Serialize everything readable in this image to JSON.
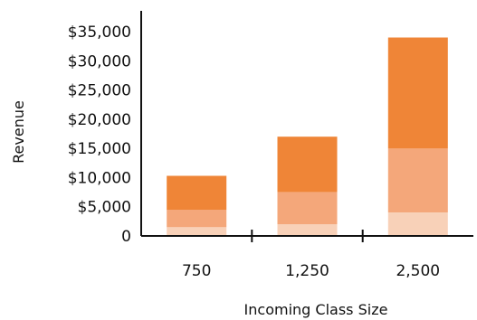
{
  "chart_data": {
    "type": "bar",
    "stacked": true,
    "categories": [
      "750",
      "1,250",
      "2,500"
    ],
    "series": [
      {
        "values": [
          1500,
          2000,
          4000
        ],
        "color": "#F8D1B8"
      },
      {
        "values": [
          3000,
          5500,
          11000
        ],
        "color": "#F4A77A"
      },
      {
        "values": [
          5800,
          9500,
          19000
        ],
        "color": "#EF8537"
      }
    ],
    "xlabel": "Incoming Class Size",
    "ylabel": "Revenue",
    "ylim": [
      0,
      35000
    ],
    "yticks": [
      {
        "value": 0,
        "label": "0"
      },
      {
        "value": 5000,
        "label": "$5,000"
      },
      {
        "value": 10000,
        "label": "$10,000"
      },
      {
        "value": 15000,
        "label": "$15,000"
      },
      {
        "value": 20000,
        "label": "$20,000"
      },
      {
        "value": 25000,
        "label": "$25,000"
      },
      {
        "value": 30000,
        "label": "$30,000"
      },
      {
        "value": 35000,
        "label": "$35,000"
      }
    ],
    "grid": false,
    "legend": "none"
  }
}
